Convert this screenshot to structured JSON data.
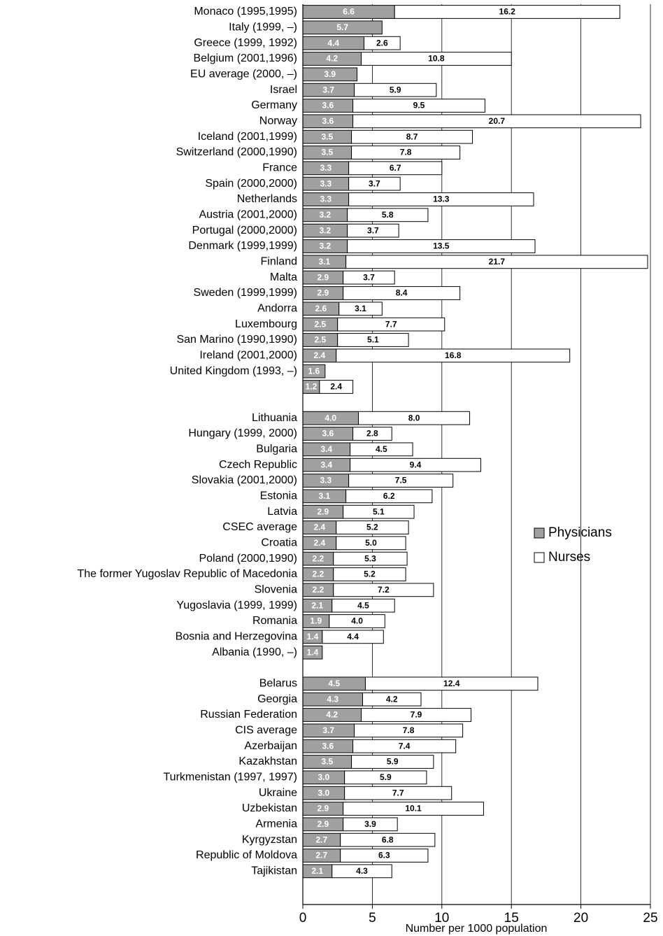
{
  "chart_data": {
    "type": "stacked-barh",
    "x_label": "Number per 1000 population",
    "xlim": [
      0,
      25
    ],
    "xticks": [
      0,
      5,
      10,
      15,
      20,
      25
    ],
    "grid": true,
    "legend": "right",
    "categories": [
      "Monaco (1995,1995)",
      "Italy (1999, –)",
      "Greece (1999, 1992)",
      "Belgium (2001,1996)",
      "EU average (2000, –)",
      "Israel",
      "Germany",
      "Norway",
      "Iceland (2001,1999)",
      "Switzerland (2000,1990)",
      "France",
      "Spain (2000,2000)",
      "Netherlands",
      "Austria (2001,2000)",
      "Portugal (2000,2000)",
      "Denmark (1999,1999)",
      "Finland",
      "Malta",
      "Sweden (1999,1999)",
      "Andorra",
      "Luxembourg",
      "San Marino (1990,1990)",
      "Ireland (2001,2000)",
      "United Kingdom (1993, –)",
      null,
      null,
      "Lithuania",
      "Hungary (1999, 2000)",
      "Bulgaria",
      "Czech Republic",
      "Slovakia (2001,2000)",
      "Estonia",
      "Latvia",
      "CSEC average",
      "Croatia",
      "Poland (2000,1990)",
      "The former Yugoslav Republic of Macedonia",
      "Slovenia",
      "Yugoslavia (1999, 1999)",
      "Romania",
      "Bosnia and Herzegovina",
      "Albania (1990, –)",
      null,
      "Belarus",
      "Georgia",
      "Russian Federation",
      "CIS average",
      "Azerbaijan",
      "Kazakhstan",
      "Turkmenistan (1997, 1997)",
      "Ukraine",
      "Uzbekistan",
      "Armenia",
      "Kyrgyzstan",
      "Republic of Moldova",
      "Tajikistan"
    ],
    "series": [
      {
        "name": "Physicians",
        "color": "#a0a0a0",
        "label_color": "#ffffff",
        "values": [
          6.6,
          5.7,
          4.4,
          4.2,
          3.9,
          3.7,
          3.6,
          3.6,
          3.5,
          3.5,
          3.3,
          3.3,
          3.3,
          3.2,
          3.2,
          3.2,
          3.1,
          2.9,
          2.9,
          2.6,
          2.5,
          2.5,
          2.4,
          1.6,
          1.2,
          null,
          4.0,
          3.6,
          3.4,
          3.4,
          3.3,
          3.1,
          2.9,
          2.4,
          2.4,
          2.2,
          2.2,
          2.2,
          2.1,
          1.9,
          1.4,
          1.4,
          null,
          4.5,
          4.3,
          4.2,
          3.7,
          3.6,
          3.5,
          3.0,
          3.0,
          2.9,
          2.9,
          2.7,
          2.7,
          2.1
        ],
        "value_labels": [
          "6.6",
          "5.7",
          "4.4",
          "4.2",
          "3.9",
          "3.7",
          "3.6",
          "3.6",
          "3.5",
          "3.5",
          "3.3",
          "3.3",
          "3.3",
          "3.2",
          "3.2",
          "3.2",
          "3.1",
          "2.9",
          "2.9",
          "2.6",
          "2.5",
          "2.5",
          "2.4",
          "1.6",
          "1.2",
          null,
          "4.0",
          "3.6",
          "3.4",
          "3.4",
          "3.3",
          "3.1",
          "2.9",
          "2.4",
          "2.4",
          "2.2",
          "2.2",
          "2.2",
          "2.1",
          "1.9",
          "1.4",
          "1.4",
          null,
          "4.5",
          "4.3",
          "4.2",
          "3.7",
          "3.6",
          "3.5",
          "3.0",
          "3.0",
          "2.9",
          "2.9",
          "2.7",
          "2.7",
          "2.1"
        ]
      },
      {
        "name": "Nurses",
        "color": "#ffffff",
        "label_color": "#000000",
        "values": [
          16.2,
          null,
          2.6,
          10.8,
          null,
          5.9,
          9.5,
          20.7,
          8.7,
          7.8,
          6.7,
          3.7,
          13.3,
          5.8,
          3.7,
          13.5,
          21.7,
          3.7,
          8.4,
          3.1,
          7.7,
          5.1,
          16.8,
          null,
          2.4,
          null,
          8.0,
          2.8,
          4.5,
          9.4,
          7.5,
          6.2,
          5.1,
          5.2,
          5.0,
          5.3,
          5.2,
          7.2,
          4.5,
          4.0,
          4.4,
          null,
          null,
          12.4,
          4.2,
          7.9,
          7.8,
          7.4,
          5.9,
          5.9,
          7.7,
          10.1,
          3.9,
          6.8,
          6.3,
          4.3
        ],
        "value_labels": [
          "16.2",
          null,
          "2.6",
          "10.8",
          null,
          "5.9",
          "9.5",
          "20.7",
          "8.7",
          "7.8",
          "6.7",
          "3.7",
          "13.3",
          "5.8",
          "3.7",
          "13.5",
          "21.7",
          "3.7",
          "8.4",
          "3.1",
          "7.7",
          "5.1",
          "16.8",
          null,
          "2.4",
          null,
          "8.0",
          "2.8",
          "4.5",
          "9.4",
          "7.5",
          "6.2",
          "5.1",
          "5.2",
          "5.0",
          "5.3",
          "5.2",
          "7.2",
          "4.5",
          "4.0",
          "4.4",
          null,
          null,
          "12.4",
          "4.2",
          "7.9",
          "7.8",
          "7.4",
          "5.9",
          "5.9",
          "7.7",
          "10.1",
          "3.9",
          "6.8",
          "6.3",
          "4.3"
        ]
      }
    ]
  }
}
